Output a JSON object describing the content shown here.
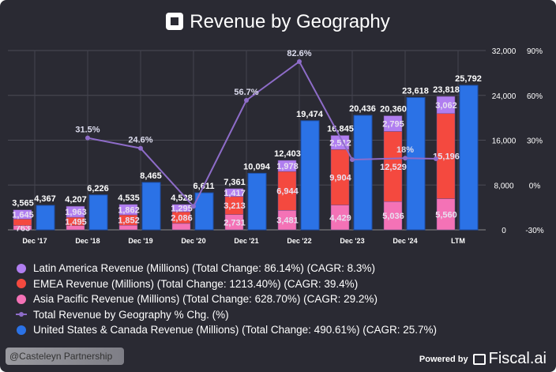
{
  "header": {
    "title": "Revenue by Geography",
    "logo_icon": "square-logo-icon"
  },
  "chart_data": {
    "type": "bar",
    "title": "Revenue by Geography",
    "categories": [
      "Dec '17",
      "Dec '18",
      "Dec '19",
      "Dec '20",
      "Dec '21",
      "Dec '22",
      "Dec '23",
      "Dec '24",
      "LTM"
    ],
    "left_axis": {
      "range": [
        0,
        32000
      ],
      "ticks": [
        "0",
        "8,000",
        "16,000",
        "24,000",
        "32,000"
      ]
    },
    "right_axis": {
      "range": [
        -30,
        90
      ],
      "ticks": [
        "-30%",
        "0%",
        "30%",
        "60%",
        "90%"
      ]
    },
    "stack_totals": [
      3565,
      4207,
      4535,
      4528,
      7361,
      12403,
      16845,
      20360,
      23818
    ],
    "stack_total_labels": [
      "3,565",
      "4,207",
      "4,535",
      "4,528",
      "7,361",
      "12,403",
      "16,845",
      "20,360",
      "23,818"
    ],
    "series": [
      {
        "name": "Asia Pacific Revenue (Millions)",
        "color": "#f472b6",
        "values": [
          763,
          749,
          821,
          1147,
          2731,
          3481,
          4429,
          5036,
          5560
        ],
        "labels": [
          "763",
          "",
          "",
          "",
          "2,731",
          "3,481",
          "4,429",
          "5,036",
          "5,560"
        ]
      },
      {
        "name": "EMEA Revenue (Millions)",
        "color": "#f4493f",
        "values": [
          1157,
          1495,
          1852,
          2086,
          3213,
          6944,
          9904,
          12529,
          15196
        ],
        "labels": [
          "",
          "1,495",
          "1,852",
          "2,086",
          "3,213",
          "6,944",
          "9,904",
          "12,529",
          "15,196"
        ]
      },
      {
        "name": "Latin America Revenue (Millions)",
        "color": "#b07ef0",
        "values": [
          1645,
          1963,
          1862,
          1295,
          1417,
          1978,
          2512,
          2795,
          3062
        ],
        "labels": [
          "1,645",
          "1,963",
          "1,862",
          "1,295",
          "1,417",
          "1,978",
          "2,512",
          "2,795",
          "3,062"
        ]
      },
      {
        "name": "United States & Canada Revenue (Millions)",
        "color": "#2b72e6",
        "values": [
          4367,
          6226,
          8465,
          6611,
          10094,
          19474,
          20436,
          23618,
          25792
        ],
        "labels": [
          "4,367",
          "6,226",
          "8,465",
          "6,611",
          "10,094",
          "19,474",
          "20,436",
          "23,618",
          "25,792"
        ]
      },
      {
        "name": "Total Revenue by Geography % Chg. (%)",
        "color": "#8e6cc9",
        "type": "line",
        "values": [
          null,
          31.5,
          24.6,
          -14.3,
          56.7,
          82.6,
          17.0,
          18.0,
          17.6
        ],
        "labels": [
          "",
          "31.5%",
          "24.6%",
          "",
          "56.7%",
          "82.6%",
          "",
          "18%",
          ""
        ]
      }
    ]
  },
  "legend": [
    {
      "label": "Latin America Revenue (Millions) (Total Change: 86.14%) (CAGR: 8.3%)",
      "color": "#b07ef0"
    },
    {
      "label": "EMEA Revenue (Millions) (Total Change: 1213.40%) (CAGR: 39.4%)",
      "color": "#f4493f"
    },
    {
      "label": "Asia Pacific Revenue (Millions) (Total Change: 628.70%) (CAGR: 29.2%)",
      "color": "#f472b6"
    },
    {
      "label": "Total Revenue by Geography % Chg. (%)",
      "color": "#8e6cc9"
    },
    {
      "label": "United States & Canada Revenue (Millions) (Total Change: 490.61%) (CAGR: 25.7%)",
      "color": "#2b72e6"
    }
  ],
  "footer": {
    "credit": "@Casteleyn Partnership",
    "powered_by": "Powered by",
    "brand": "Fiscal.ai"
  }
}
